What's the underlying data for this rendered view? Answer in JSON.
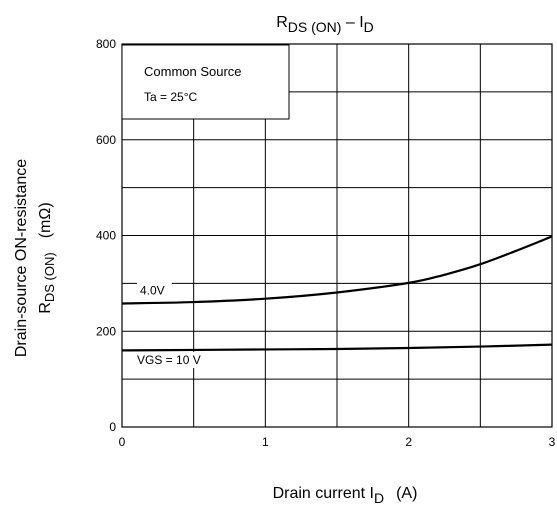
{
  "chart_data": {
    "type": "line",
    "title_main": "R",
    "title_sub1": "DS (ON)",
    "title_mid": " – I",
    "title_sub2": "D",
    "ylabel_line1": "Drain-source ON-resistance",
    "ylabel_main": "R",
    "ylabel_sub": "DS (ON)",
    "ylabel_unit": "(mΩ)",
    "xlabel_main": "Drain current   I",
    "xlabel_sub": "D",
    "xlabel_unit": "(A)",
    "xlim": [
      0,
      3
    ],
    "ylim": [
      0,
      800
    ],
    "x_ticks": [
      "0",
      "1",
      "2",
      "3"
    ],
    "y_ticks": [
      "0",
      "200",
      "400",
      "600",
      "800"
    ],
    "grid": true,
    "legend_box": {
      "line1": "Common Source",
      "line2": "Ta = 25°C"
    },
    "series": [
      {
        "name": "4.0V",
        "x": [
          0,
          0.5,
          1.0,
          1.5,
          2.0,
          2.25,
          2.5,
          2.75,
          3.0
        ],
        "values": [
          258,
          261,
          268,
          281,
          301,
          318,
          340,
          368,
          398
        ]
      },
      {
        "name": "VGS = 10 V",
        "x": [
          0,
          0.5,
          1.0,
          1.5,
          2.0,
          2.5,
          3.0
        ],
        "values": [
          160,
          161,
          162,
          163,
          165,
          168,
          172
        ]
      }
    ]
  }
}
